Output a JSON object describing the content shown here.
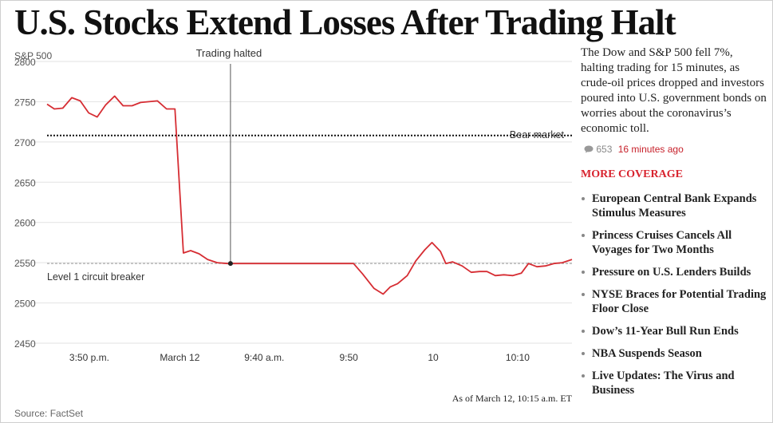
{
  "headline": "U.S. Stocks Extend Losses After Trading Halt",
  "summary": "The Dow and S&P 500 fell 7%, halting trading for 15 minutes, as crude-oil prices dropped and investors poured into U.S. government bonds on worries about the coronavirus’s economic toll.",
  "comments_count": "653",
  "timestamp": "16 minutes ago",
  "more_coverage": {
    "title": "MORE COVERAGE",
    "items": [
      "European Central Bank Expands Stimulus Measures",
      "Princess Cruises Cancels All Voyages for Two Months",
      "Pressure on U.S. Lenders Builds",
      "NYSE Braces for Potential Trading Floor Close",
      "Dow’s 11-Year Bull Run Ends",
      "NBA Suspends Season",
      "Live Updates: The Virus and Business"
    ]
  },
  "colors": {
    "line": "#d62d33",
    "accent": "#d8232e",
    "grid": "#e2e2e2"
  },
  "chart_data": {
    "type": "line",
    "ylabel": "S&P 500",
    "ylim": [
      2450,
      2800
    ],
    "yticks": [
      2800,
      2750,
      2700,
      2650,
      2600,
      2550,
      2500,
      2450
    ],
    "xlim": [
      0,
      87
    ],
    "xticks": [
      {
        "label": "3:50 p.m.",
        "x": 7
      },
      {
        "label": "March 12",
        "x": 22
      },
      {
        "label": "9:40 a.m.",
        "x": 36
      },
      {
        "label": "9:50",
        "x": 50
      },
      {
        "label": "10",
        "x": 64
      },
      {
        "label": "10:10",
        "x": 78
      }
    ],
    "series": [
      {
        "name": "S&P 500",
        "x": [
          0,
          1.2,
          2.6,
          4.1,
          5.5,
          6.9,
          8.3,
          9.7,
          11.2,
          12.6,
          14.1,
          15.5,
          16.9,
          18.3,
          19.8,
          21.2,
          22.6,
          23.8,
          25.2,
          26.6,
          28.2,
          29.9,
          31.3,
          33,
          50.8,
          52.3,
          54.2,
          55.7,
          56.9,
          58.1,
          59.7,
          61.1,
          62.6,
          63.8,
          65.2,
          66.1,
          67.2,
          68.8,
          70.3,
          71.7,
          72.9,
          74.3,
          75.7,
          77.2,
          78.6,
          79.8,
          81.2,
          82.6,
          84,
          85.4,
          87
        ],
        "values": [
          2747,
          2741,
          2742,
          2755,
          2751,
          2736,
          2731,
          2746,
          2757,
          2745,
          2745,
          2749,
          2750,
          2751,
          2741,
          2741,
          2562,
          2565,
          2561,
          2554,
          2550,
          2549,
          2549,
          2549,
          2549,
          2536,
          2518,
          2511,
          2520,
          2524,
          2534,
          2552,
          2566,
          2575,
          2564,
          2549,
          2551,
          2546,
          2538,
          2539,
          2539,
          2534,
          2535,
          2534,
          2537,
          2549,
          2545,
          2546,
          2549,
          2550,
          2554
        ]
      }
    ],
    "annotations": [
      {
        "label": "Bear market",
        "y": 2708,
        "style": "dotted"
      },
      {
        "label": "Level 1 circuit breaker",
        "y": 2549,
        "style": "dotted"
      },
      {
        "label": "Trading halted",
        "x": 30.4,
        "style": "vertical"
      }
    ],
    "note": "As of March 12, 10:15 a.m. ET",
    "source": "Source: FactSet"
  }
}
